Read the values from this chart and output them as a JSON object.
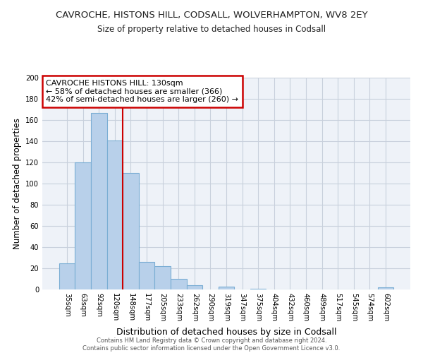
{
  "title": "CAVROCHE, HISTONS HILL, CODSALL, WOLVERHAMPTON, WV8 2EY",
  "subtitle": "Size of property relative to detached houses in Codsall",
  "xlabel": "Distribution of detached houses by size in Codsall",
  "ylabel": "Number of detached properties",
  "categories": [
    "35sqm",
    "63sqm",
    "92sqm",
    "120sqm",
    "148sqm",
    "177sqm",
    "205sqm",
    "233sqm",
    "262sqm",
    "290sqm",
    "319sqm",
    "347sqm",
    "375sqm",
    "404sqm",
    "432sqm",
    "460sqm",
    "489sqm",
    "517sqm",
    "545sqm",
    "574sqm",
    "602sqm"
  ],
  "values": [
    25,
    120,
    167,
    141,
    110,
    26,
    22,
    10,
    4,
    0,
    3,
    0,
    1,
    0,
    0,
    0,
    0,
    0,
    0,
    0,
    2
  ],
  "bar_color": "#b8d0ea",
  "bar_edge_color": "#7aadd4",
  "annotation_title": "CAVROCHE HISTONS HILL: 130sqm",
  "annotation_line1": "← 58% of detached houses are smaller (366)",
  "annotation_line2": "42% of semi-detached houses are larger (260) →",
  "ylim": [
    0,
    200
  ],
  "yticks": [
    0,
    20,
    40,
    60,
    80,
    100,
    120,
    140,
    160,
    180,
    200
  ],
  "red_line_index": 3.5,
  "footer1": "Contains HM Land Registry data © Crown copyright and database right 2024.",
  "footer2": "Contains public sector information licensed under the Open Government Licence v3.0.",
  "background_color": "#ffffff",
  "plot_bg_color": "#eef2f8",
  "grid_color": "#c8d0dc"
}
